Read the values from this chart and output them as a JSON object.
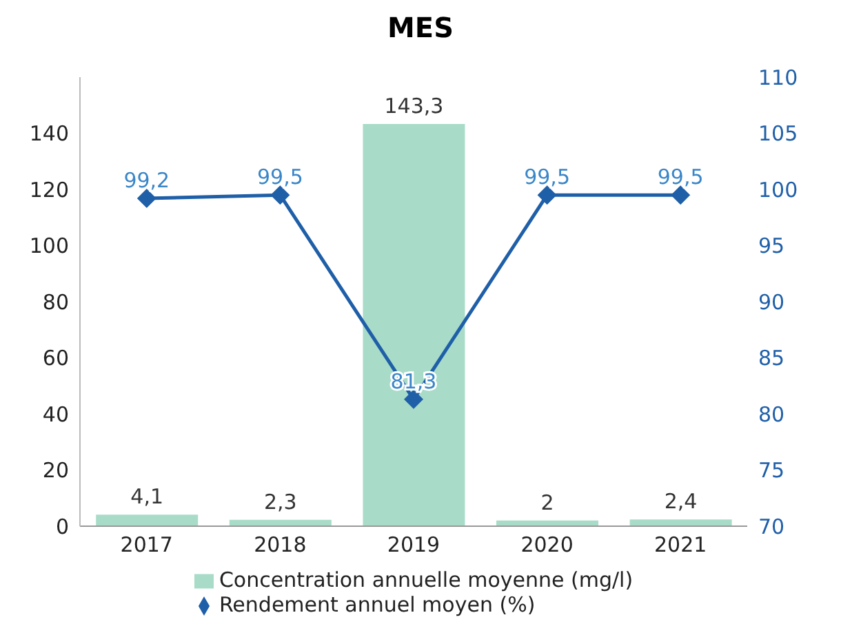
{
  "chart_data": {
    "type": "bar",
    "title": "MES",
    "categories": [
      "2017",
      "2018",
      "2019",
      "2020",
      "2021"
    ],
    "series": [
      {
        "name": "Concentration annuelle moyenne (mg/l)",
        "color": "#a8dcc8",
        "values": [
          4.1,
          2.3,
          143.3,
          2,
          2.4
        ],
        "value_labels": [
          "4,1",
          "2,3",
          "143,3",
          "2",
          "2,4"
        ]
      },
      {
        "name": "Rendement annuel moyen (%)",
        "type": "line",
        "axis": "y2",
        "color": "#1f5fa8",
        "values": [
          99.2,
          99.5,
          81.3,
          99.5,
          99.5
        ],
        "value_labels": [
          "99,2",
          "99,5",
          "81,3",
          "99,5",
          "99,5"
        ]
      }
    ],
    "ylim": [
      0,
      160
    ],
    "yticks": [
      0,
      20,
      40,
      60,
      80,
      100,
      120,
      140
    ],
    "y2lim": [
      70,
      110
    ],
    "y2ticks": [
      70,
      75,
      80,
      85,
      90,
      95,
      100,
      105,
      110
    ],
    "marker": "diamond",
    "legend": "bottom"
  }
}
